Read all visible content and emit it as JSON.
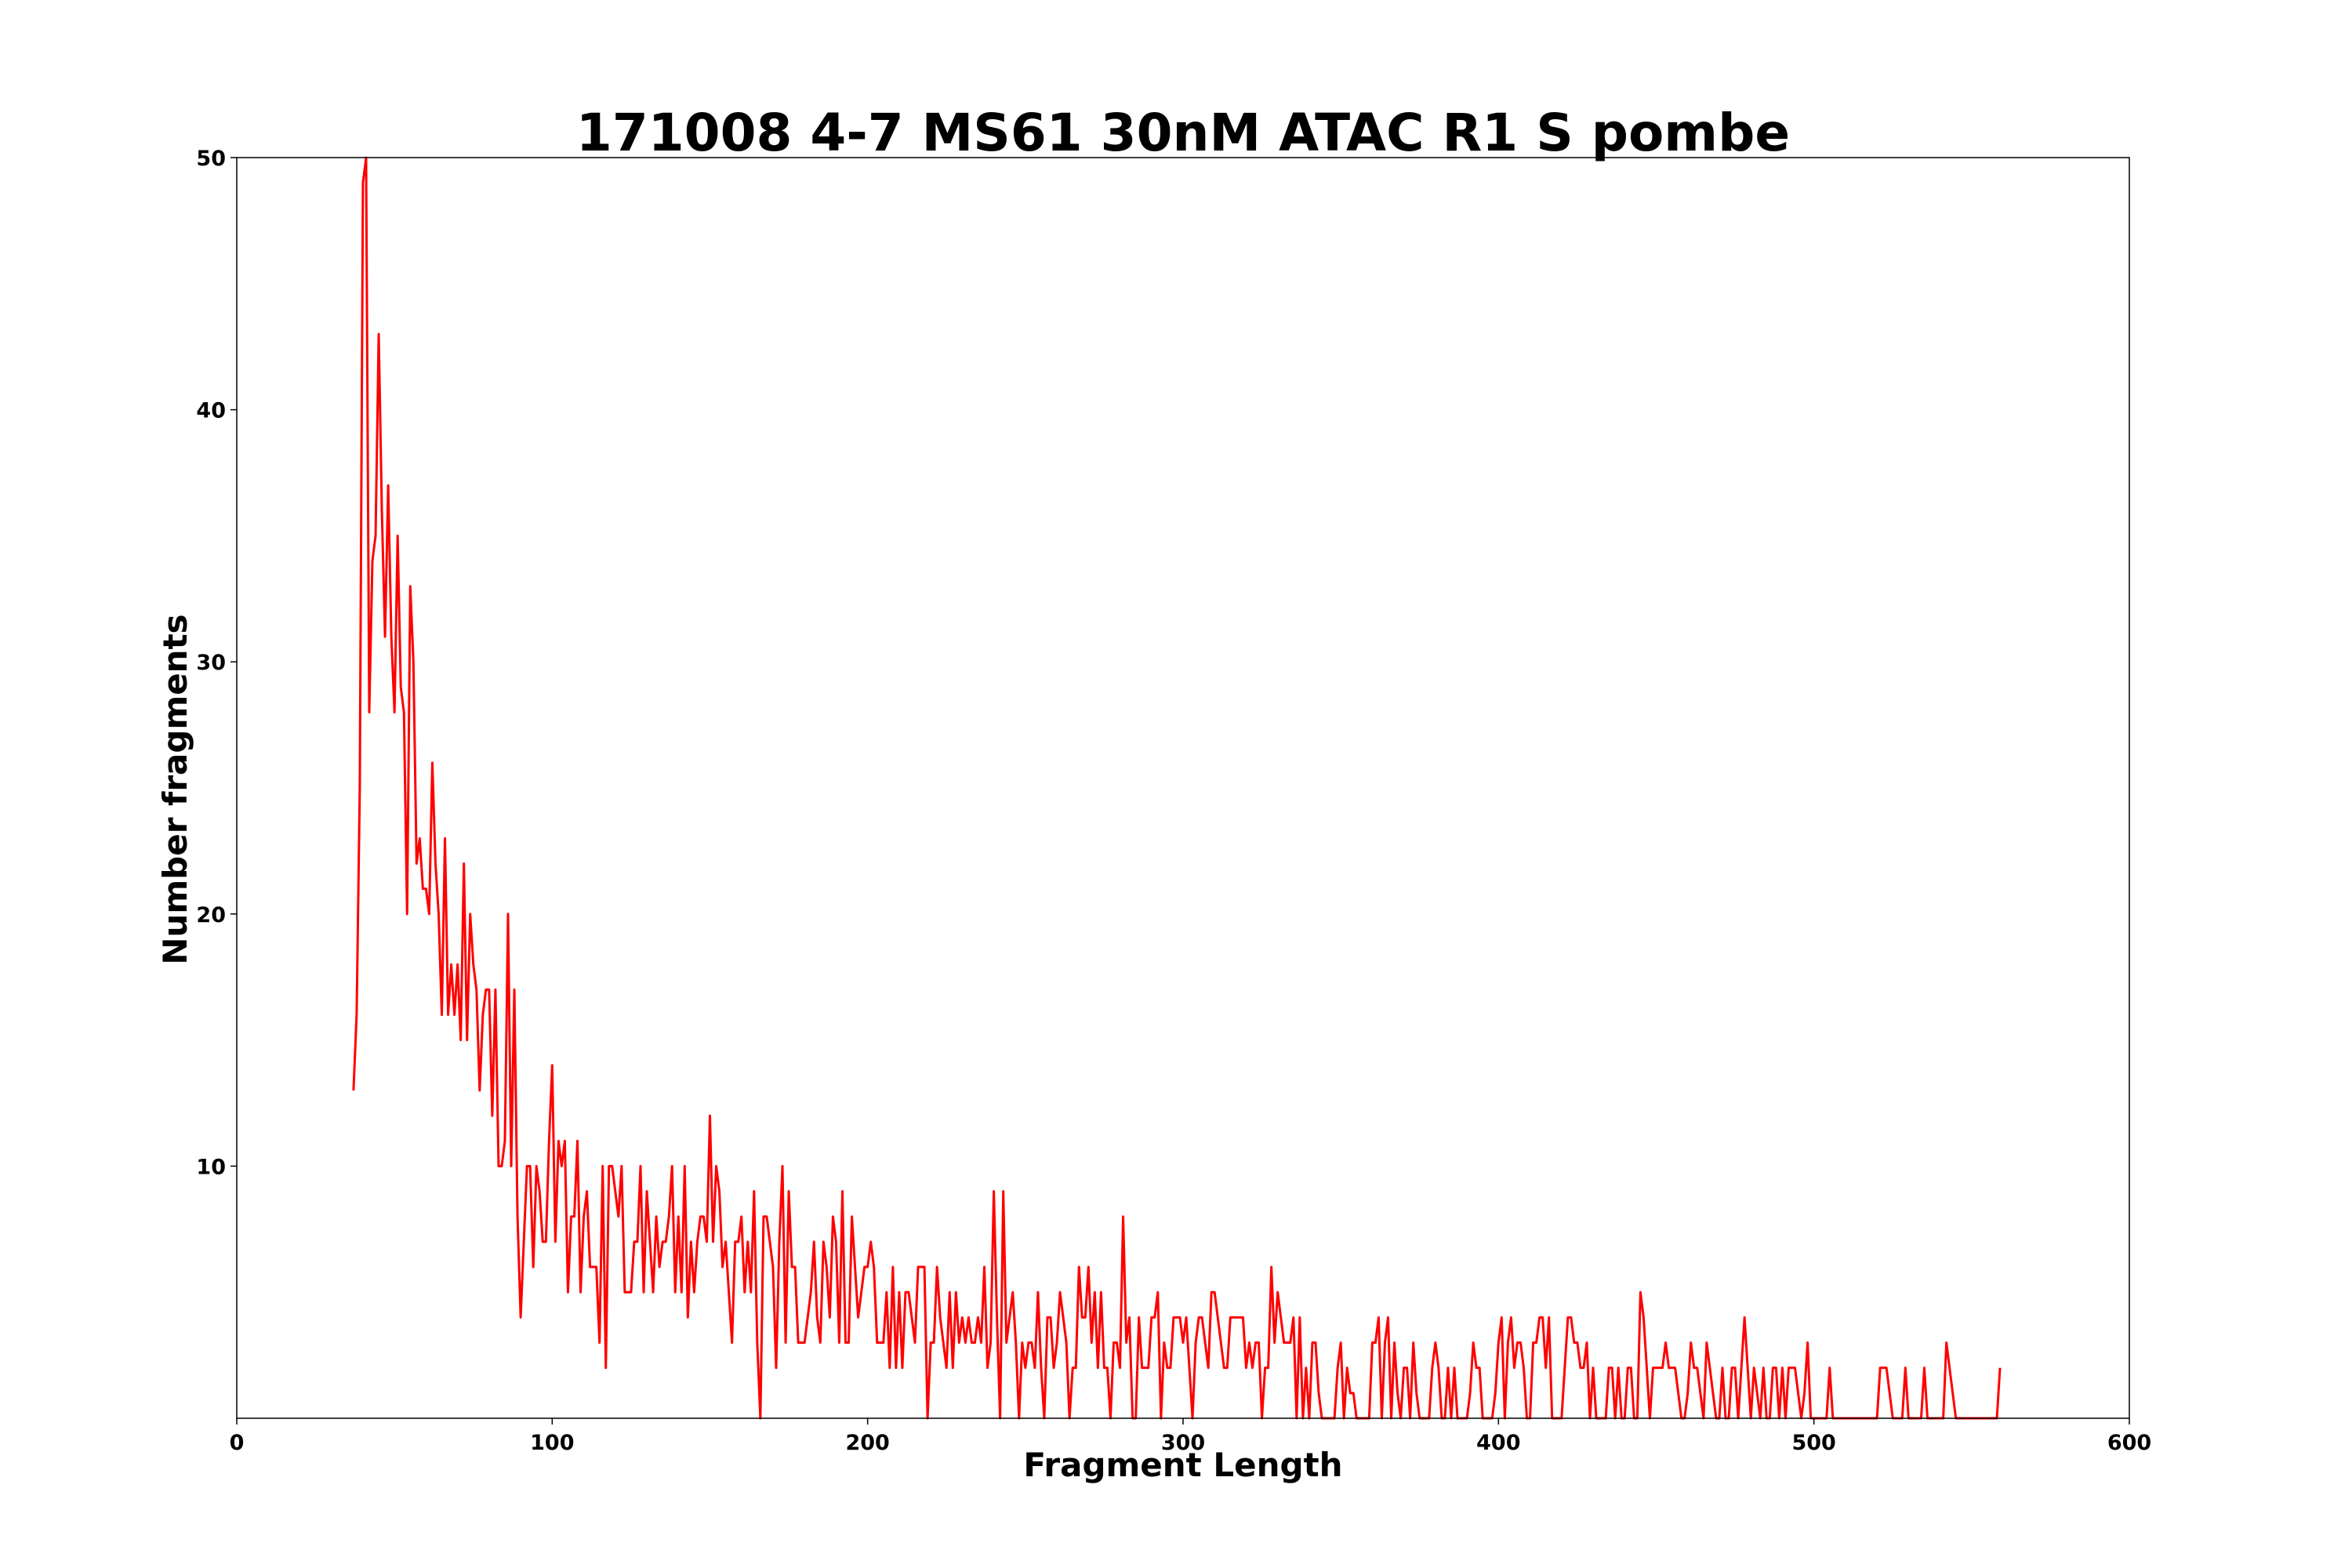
{
  "chart_data": {
    "type": "line",
    "title": "171008 4-7 MS61 30nM ATAC R1 S pombe",
    "xlabel": "Fragment Length",
    "ylabel": "Number fragments",
    "xlim": [
      0,
      600
    ],
    "ylim": [
      0,
      50
    ],
    "x_ticks": [
      "0",
      "100",
      "200",
      "300",
      "400",
      "500",
      "600"
    ],
    "y_ticks": [
      "10",
      "20",
      "30",
      "40",
      "50"
    ],
    "grid": false,
    "legend": "none",
    "series": [
      {
        "color": "#ff0000",
        "x_start": 37,
        "x_step": 1,
        "values": [
          13,
          16,
          25,
          49,
          50,
          28,
          34,
          35,
          43,
          36,
          31,
          37,
          31,
          28,
          35,
          29,
          28,
          20,
          33,
          30,
          22,
          23,
          21,
          21,
          20,
          26,
          22,
          20,
          16,
          23,
          16,
          18,
          16,
          18,
          15,
          22,
          15,
          20,
          18,
          17,
          13,
          16,
          17,
          17,
          12,
          17,
          10,
          10,
          11,
          20,
          10,
          17,
          8,
          4,
          7,
          10,
          10,
          6,
          10,
          9,
          7,
          7,
          11,
          14,
          7,
          11,
          10,
          11,
          5,
          8,
          8,
          11,
          5,
          8,
          9,
          6,
          6,
          6,
          3,
          10,
          2,
          10,
          10,
          9,
          8,
          10,
          5,
          5,
          5,
          7,
          7,
          10,
          5,
          9,
          7,
          5,
          8,
          6,
          7,
          7,
          8,
          10,
          5,
          8,
          5,
          10,
          4,
          7,
          5,
          7,
          8,
          8,
          7,
          12,
          7,
          10,
          9,
          6,
          7,
          5,
          3,
          7,
          7,
          8,
          5,
          7,
          5,
          9,
          3,
          0,
          8,
          8,
          7,
          6,
          2,
          7,
          10,
          3,
          9,
          6,
          6,
          3,
          3,
          3,
          4,
          5,
          7,
          4,
          3,
          7,
          6,
          4,
          8,
          7,
          3,
          9,
          3,
          3,
          8,
          6,
          4,
          5,
          6,
          6,
          7,
          6,
          3,
          3,
          3,
          5,
          2,
          6,
          2,
          5,
          2,
          5,
          5,
          4,
          3,
          6,
          6,
          6,
          0,
          3,
          3,
          6,
          4,
          3,
          2,
          5,
          2,
          5,
          3,
          4,
          3,
          4,
          3,
          3,
          4,
          3,
          6,
          2,
          3,
          9,
          4,
          0,
          9,
          3,
          4,
          5,
          3,
          0,
          3,
          2,
          3,
          3,
          2,
          5,
          2,
          0,
          4,
          4,
          2,
          3,
          5,
          4,
          3,
          0,
          2,
          2,
          6,
          4,
          4,
          6,
          3,
          5,
          2,
          5,
          2,
          2,
          0,
          3,
          3,
          2,
          8,
          3,
          4,
          0,
          0,
          4,
          2,
          2,
          2,
          4,
          4,
          5,
          0,
          3,
          2,
          2,
          4,
          4,
          4,
          3,
          4,
          2,
          0,
          3,
          4,
          4,
          3,
          2,
          5,
          5,
          4,
          3,
          2,
          2,
          4,
          4,
          4,
          4,
          4,
          2,
          3,
          2,
          3,
          3,
          0,
          2,
          2,
          6,
          3,
          5,
          4,
          3,
          3,
          3,
          4,
          0,
          4,
          0,
          2,
          0,
          3,
          3,
          1,
          0,
          0,
          0,
          0,
          0,
          2,
          3,
          0,
          2,
          1,
          1,
          0,
          0,
          0,
          0,
          0,
          3,
          3,
          4,
          0,
          3,
          4,
          0,
          3,
          1,
          0,
          2,
          2,
          0,
          3,
          1,
          0,
          0,
          0,
          0,
          2,
          3,
          2,
          0,
          0,
          2,
          0,
          2,
          0,
          0,
          0,
          0,
          1,
          3,
          2,
          2,
          0,
          0,
          0,
          0,
          1,
          3,
          4,
          0,
          3,
          4,
          2,
          3,
          3,
          2,
          0,
          0,
          3,
          3,
          4,
          4,
          2,
          4,
          0,
          0,
          0,
          0,
          2,
          4,
          4,
          3,
          3,
          2,
          2,
          3,
          0,
          2,
          0,
          0,
          0,
          0,
          2,
          2,
          0,
          2,
          0,
          0,
          2,
          2,
          0,
          0,
          5,
          4,
          2,
          0,
          2,
          2,
          2,
          2,
          3,
          2,
          2,
          2,
          1,
          0,
          0,
          1,
          3,
          2,
          2,
          1,
          0,
          3,
          2,
          1,
          0,
          0,
          2,
          0,
          0,
          2,
          2,
          0,
          2,
          4,
          2,
          0,
          2,
          1,
          0,
          2,
          0,
          0,
          2,
          2,
          0,
          2,
          0,
          2,
          2,
          2,
          1,
          0,
          1,
          3,
          0,
          0,
          0,
          0,
          0,
          0,
          2,
          0,
          0,
          0,
          0,
          0,
          0,
          0,
          0,
          0,
          0,
          0,
          0,
          0,
          0,
          0,
          2,
          2,
          2,
          1,
          0,
          0,
          0,
          0,
          2,
          0,
          0,
          0,
          0,
          0,
          2,
          0,
          0,
          0,
          0,
          0,
          0,
          3,
          2,
          1,
          0,
          0,
          0,
          0,
          0,
          0,
          0,
          0,
          0,
          0,
          0,
          0,
          0,
          0,
          2
        ]
      }
    ]
  }
}
